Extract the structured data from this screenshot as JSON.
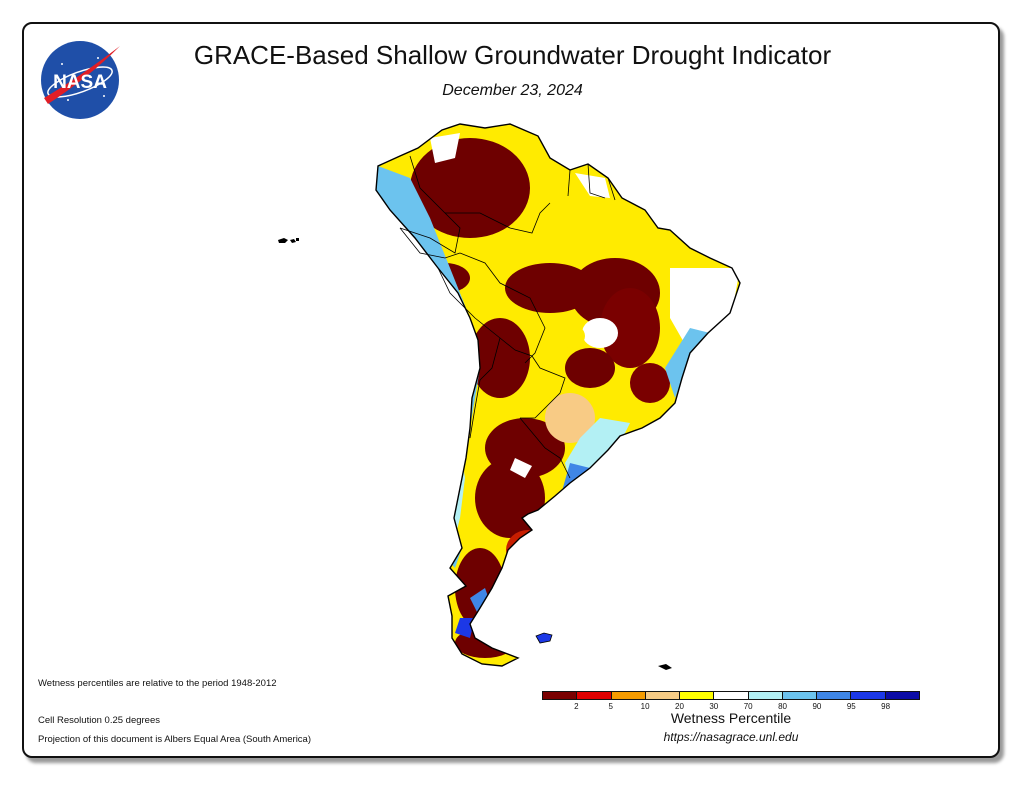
{
  "header": {
    "logo_text": "NASA",
    "title": "GRACE-Based Shallow Groundwater Drought Indicator",
    "date": "December 23, 2024"
  },
  "notes": {
    "period": "Wetness percentiles are relative to the period 1948-2012",
    "resolution": "Cell Resolution 0.25 degrees",
    "projection": "Projection of this document is Albers Equal Area (South America)"
  },
  "legend": {
    "title": "Wetness Percentile",
    "url": "https://nasagrace.unl.edu",
    "colors": [
      "#7a0000",
      "#e00000",
      "#f59b00",
      "#f6cb85",
      "#ffff00",
      "#ffffff",
      "#b3f0f4",
      "#6cc3ee",
      "#3f86e6",
      "#1c38e6",
      "#0c0ca6"
    ],
    "ticks": [
      "2",
      "5",
      "10",
      "20",
      "30",
      "70",
      "80",
      "90",
      "95",
      "98"
    ]
  },
  "map": {
    "region": "South America",
    "colors": {
      "extreme_dry": "#6e0000",
      "severe_dry": "#c81e00",
      "moderate_dry": "#f5a000",
      "mild_dry": "#f8cb85",
      "abnormal_dry": "#ffeb00",
      "normal": "#ffffff",
      "mild_wet": "#b3f0f4",
      "moderate_wet": "#6cc3ee",
      "wet": "#3f86e6",
      "very_wet": "#1c38e6"
    }
  }
}
